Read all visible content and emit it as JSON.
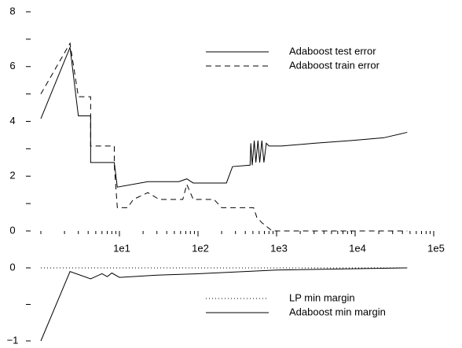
{
  "chart_data": [
    {
      "type": "line",
      "xscale": "log",
      "xlim": [
        1,
        100000
      ],
      "ylim": [
        0,
        8
      ],
      "yticks": [
        0,
        2,
        4,
        6,
        8
      ],
      "yminor_ticks": [
        1,
        3,
        5,
        7
      ],
      "xticks": [
        {
          "value": 10,
          "label": "1e1"
        },
        {
          "value": 100,
          "label": "1e2"
        },
        {
          "value": 1000,
          "label": "1e3"
        },
        {
          "value": 10000,
          "label": "1e4"
        },
        {
          "value": 100000,
          "label": "1e5"
        }
      ],
      "xminor_ticks": [
        1,
        2,
        3,
        4,
        5,
        6,
        7,
        8,
        9,
        20,
        30,
        40,
        50,
        60,
        70,
        80,
        90,
        200,
        300,
        400,
        500,
        600,
        700,
        800,
        900,
        2000,
        3000,
        4000,
        5000,
        6000,
        7000,
        8000,
        9000,
        20000,
        30000,
        40000,
        50000,
        60000,
        70000,
        80000,
        90000
      ],
      "legend": "upper right",
      "series": [
        {
          "name": "Adaboost test error",
          "color": "#000000",
          "style": "solid",
          "x": [
            1,
            2.35,
            3,
            4.3,
            4.3,
            8.6,
            9.4,
            23,
            57,
            72,
            87,
            230,
            275,
            460,
            470,
            490,
            520,
            545,
            580,
            610,
            650,
            690,
            740,
            800,
            1150,
            3000,
            9000,
            23000,
            46000
          ],
          "values": [
            4.1,
            6.7,
            4.2,
            4.2,
            2.5,
            2.5,
            1.6,
            1.8,
            1.8,
            1.9,
            1.75,
            1.75,
            2.35,
            2.4,
            3.2,
            2.4,
            3.3,
            2.5,
            3.3,
            2.5,
            3.3,
            2.5,
            3.2,
            3.1,
            3.1,
            3.2,
            3.3,
            3.4,
            3.6
          ]
        },
        {
          "name": "Adaboost train error",
          "color": "#000000",
          "style": "dashed",
          "x": [
            1,
            2.35,
            3,
            4.3,
            4.3,
            8.6,
            8.6,
            9.4,
            12.7,
            15,
            23,
            32,
            64,
            72,
            87,
            160,
            200,
            510,
            560,
            650,
            880,
            46000
          ],
          "values": [
            5.0,
            6.85,
            4.9,
            4.9,
            3.1,
            3.1,
            2.4,
            0.85,
            0.85,
            1.15,
            1.4,
            1.15,
            1.15,
            1.7,
            1.15,
            1.15,
            0.85,
            0.85,
            0.5,
            0.3,
            0,
            0
          ]
        }
      ]
    },
    {
      "type": "line",
      "xscale": "log",
      "xlim": [
        1,
        100000
      ],
      "ylim": [
        -1,
        0
      ],
      "yticks": [
        0,
        {
          "value": -1,
          "label": "−1"
        }
      ],
      "yminor_ticks": [
        -0.5
      ],
      "legend": "lower right",
      "series": [
        {
          "name": "LP min margin",
          "color": "#000000",
          "style": "dotted",
          "x": [
            1,
            46000
          ],
          "values": [
            0,
            0
          ]
        },
        {
          "name": "Adaboost min margin",
          "color": "#000000",
          "style": "solid",
          "x": [
            1,
            2.35,
            4.3,
            6,
            7,
            8,
            10,
            30,
            100,
            1000,
            46000
          ],
          "values": [
            -1,
            -0.05,
            -0.15,
            -0.08,
            -0.12,
            -0.07,
            -0.13,
            -0.1,
            -0.08,
            -0.03,
            0
          ]
        }
      ]
    }
  ]
}
